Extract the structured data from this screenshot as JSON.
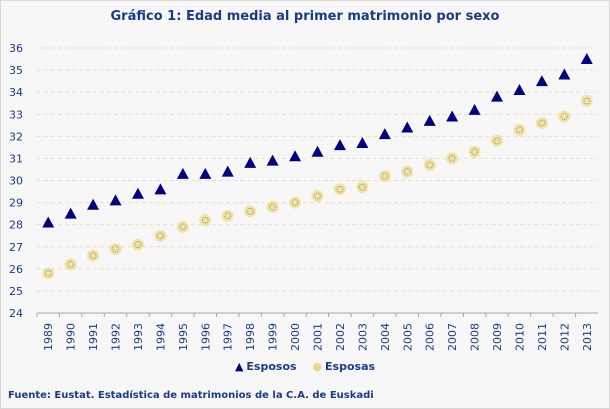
{
  "chart_data": {
    "type": "scatter",
    "title": "Gráfico 1: Edad media al primer matrimonio por sexo",
    "categories": [
      "1989",
      "1990",
      "1991",
      "1992",
      "1993",
      "1994",
      "1995",
      "1996",
      "1997",
      "1998",
      "1999",
      "2000",
      "2001",
      "2002",
      "2003",
      "2004",
      "2005",
      "2006",
      "2007",
      "2008",
      "2009",
      "2010",
      "2011",
      "2012",
      "2013"
    ],
    "series": [
      {
        "name": "Esposos",
        "marker": "triangle",
        "color": "#000080",
        "values": [
          28.1,
          28.5,
          28.9,
          29.1,
          29.4,
          29.6,
          30.3,
          30.3,
          30.4,
          30.8,
          30.9,
          31.1,
          31.3,
          31.6,
          31.7,
          32.1,
          32.4,
          32.7,
          32.9,
          33.2,
          33.8,
          34.1,
          34.5,
          34.8,
          35.5
        ]
      },
      {
        "name": "Esposas",
        "marker": "circle",
        "color": "#f3e3a0",
        "values": [
          25.8,
          26.2,
          26.6,
          26.9,
          27.1,
          27.5,
          27.9,
          28.2,
          28.4,
          28.6,
          28.8,
          29.0,
          29.3,
          29.6,
          29.7,
          30.2,
          30.4,
          30.7,
          31.0,
          31.3,
          31.8,
          32.3,
          32.6,
          32.9,
          33.6
        ]
      }
    ],
    "ylim": [
      24,
      36
    ],
    "yticks": [
      "24",
      "25",
      "26",
      "27",
      "28",
      "29",
      "30",
      "31",
      "32",
      "33",
      "34",
      "35",
      "36"
    ],
    "grid": true,
    "legend": "bottom"
  },
  "source": "Fuente: Eustat. Estadística de matrimonios de la C.A. de Euskadi"
}
